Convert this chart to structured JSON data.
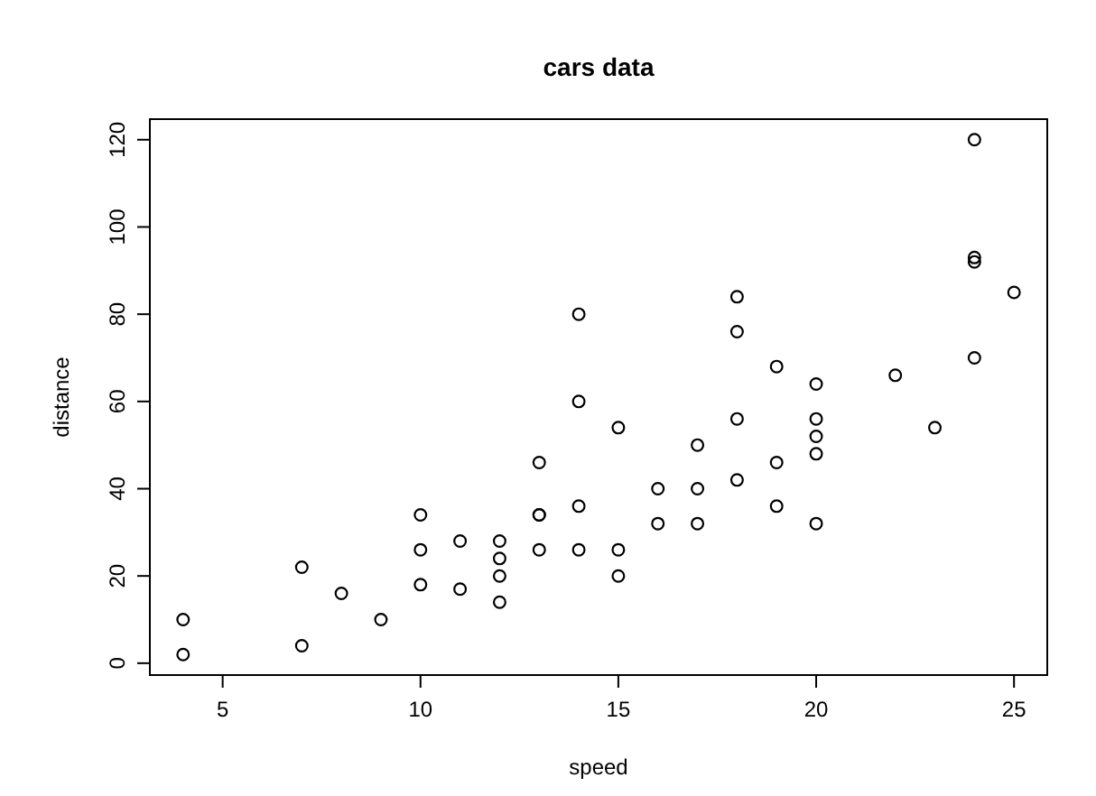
{
  "chart_data": {
    "type": "scatter",
    "title": "cars data",
    "xlabel": "speed",
    "ylabel": "distance",
    "x": [
      4,
      4,
      7,
      7,
      8,
      9,
      10,
      10,
      10,
      11,
      11,
      12,
      12,
      12,
      12,
      13,
      13,
      13,
      13,
      14,
      14,
      14,
      14,
      15,
      15,
      15,
      16,
      16,
      17,
      17,
      17,
      18,
      18,
      18,
      18,
      19,
      19,
      19,
      20,
      20,
      20,
      20,
      20,
      22,
      23,
      24,
      24,
      24,
      24,
      25
    ],
    "values": [
      2,
      10,
      4,
      22,
      16,
      10,
      18,
      26,
      34,
      17,
      28,
      14,
      20,
      24,
      28,
      26,
      34,
      34,
      46,
      26,
      36,
      60,
      80,
      20,
      26,
      54,
      32,
      40,
      32,
      40,
      50,
      42,
      56,
      76,
      84,
      36,
      46,
      68,
      32,
      48,
      52,
      56,
      64,
      66,
      54,
      70,
      92,
      93,
      120,
      85
    ],
    "color": "#000000",
    "marker": "circle",
    "xlim": [
      3.16,
      25.84
    ],
    "ylim": [
      -2.72,
      124.72
    ],
    "xticks": [
      5,
      10,
      15,
      20,
      25
    ],
    "yticks": [
      0,
      20,
      40,
      60,
      80,
      100,
      120
    ],
    "grid": false
  }
}
